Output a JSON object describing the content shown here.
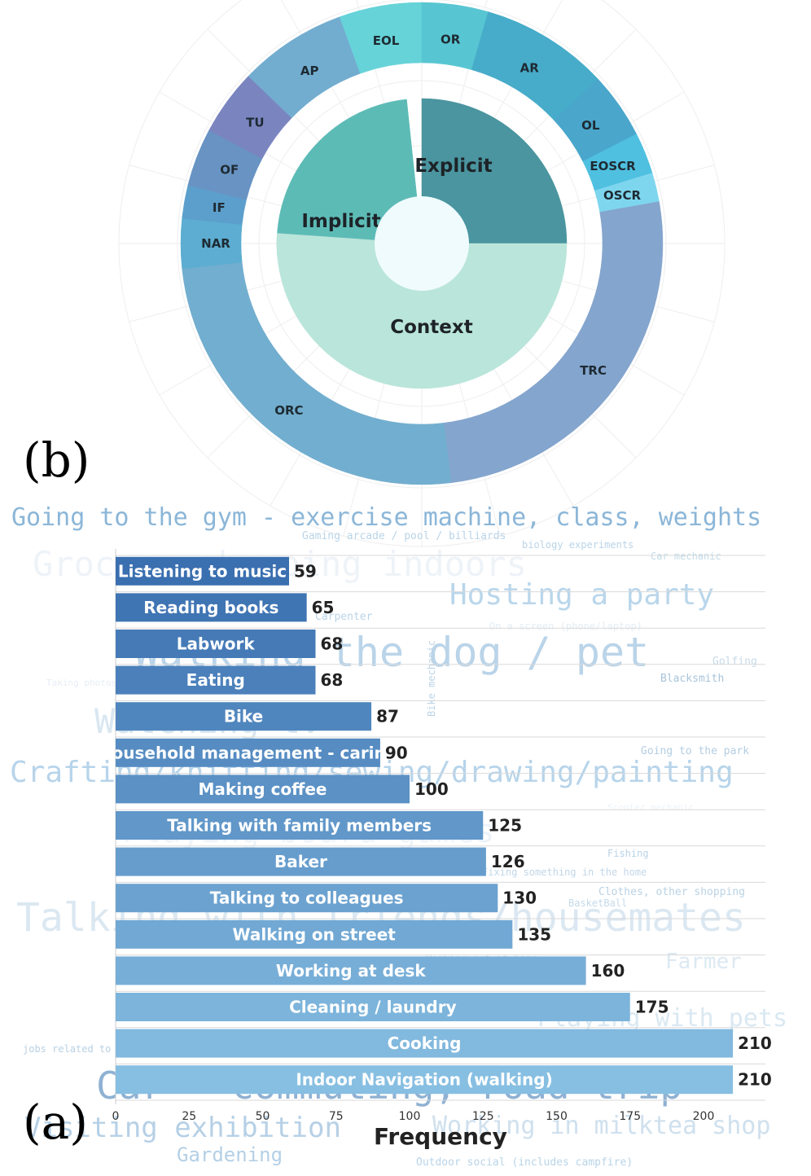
{
  "panel_b_label": "(b)",
  "panel_a_label": "(a)",
  "chart_data": [
    {
      "type": "pie",
      "panel": "(b)",
      "inner_ring": [
        {
          "label": "Explicit",
          "value": 90,
          "color": "#4a959f"
        },
        {
          "label": "Implicit",
          "value": 86,
          "color": "#5dbbb6"
        },
        {
          "label": "Context",
          "value": 184,
          "color": "#bae5da"
        }
      ],
      "outer_ring": [
        {
          "label": "EOL",
          "value": 20,
          "color": "#66d3d8"
        },
        {
          "label": "OR",
          "value": 16,
          "color": "#58c6d2"
        },
        {
          "label": "AR",
          "value": 31,
          "color": "#46acc9"
        },
        {
          "label": "OL",
          "value": 16,
          "color": "#4aa6cb"
        },
        {
          "label": "EOSCR",
          "value": 10,
          "color": "#4fc0e0"
        },
        {
          "label": "OSCR",
          "value": 7,
          "color": "#7ed6ee"
        },
        {
          "label": "TRC",
          "value": 93,
          "color": "#84a5cd"
        },
        {
          "label": "ORC",
          "value": 91,
          "color": "#72aecf"
        },
        {
          "label": "NAR",
          "value": 12,
          "color": "#5cadd1"
        },
        {
          "label": "IF",
          "value": 8,
          "color": "#5c9fcc"
        },
        {
          "label": "OF",
          "value": 14,
          "color": "#6893c3"
        },
        {
          "label": "TU",
          "value": 16,
          "color": "#7a85c0"
        },
        {
          "label": "AP",
          "value": 26,
          "color": "#72add0"
        }
      ]
    },
    {
      "type": "bar",
      "orientation": "horizontal",
      "panel": "(a)",
      "categories": [
        "Listening to music",
        "Reading books",
        "Labwork",
        "Eating",
        "Bike",
        "Household management - caring",
        "Making coffee",
        "Talking with family members",
        "Baker",
        "Talking to colleagues",
        "Walking on street",
        "Working at desk",
        "Cleaning / laundry",
        "Cooking",
        "Indoor Navigation (walking)"
      ],
      "values": [
        59,
        65,
        68,
        68,
        87,
        90,
        100,
        125,
        126,
        130,
        135,
        160,
        175,
        210,
        210
      ],
      "xlabel": "Frequency",
      "xlim": [
        0,
        220
      ],
      "xticks": [
        0,
        25,
        50,
        75,
        100,
        125,
        150,
        175,
        200
      ],
      "grid": true,
      "bar_color_top": "#3a6fb0",
      "bar_color_bottom": "#87bfe2"
    }
  ],
  "word_cloud": [
    {
      "text": "Going to the gym - exercise machine, class, weights",
      "size": "large"
    },
    {
      "text": "Gaming arcade / pool / billiards",
      "size": "small"
    },
    {
      "text": "biology experiments",
      "size": "small"
    },
    {
      "text": "Car mechanic",
      "size": "small"
    },
    {
      "text": "Grocery shopping indoors",
      "size": "large"
    },
    {
      "text": "Hosting a party",
      "size": "large"
    },
    {
      "text": "Carpenter",
      "size": "small"
    },
    {
      "text": "On a screen (phone/laptop)",
      "size": "small"
    },
    {
      "text": "Walking the dog / pet",
      "size": "large"
    },
    {
      "text": "Bike mechanic",
      "size": "small"
    },
    {
      "text": "Golfing",
      "size": "small"
    },
    {
      "text": "Blacksmith",
      "size": "small"
    },
    {
      "text": "Taking photos to document activities",
      "size": "small"
    },
    {
      "text": "Watching tv",
      "size": "large"
    },
    {
      "text": "Going to the park",
      "size": "small"
    },
    {
      "text": "Crafting/knitting/sewing/drawing/painting",
      "size": "large"
    },
    {
      "text": "Scooter mechanic",
      "size": "small"
    },
    {
      "text": "Playing board games",
      "size": "large"
    },
    {
      "text": "Fishing",
      "size": "small"
    },
    {
      "text": "Fixing something in the home",
      "size": "small"
    },
    {
      "text": "Clothes, other shopping",
      "size": "small"
    },
    {
      "text": "BasketBall",
      "size": "small"
    },
    {
      "text": "Talking with friends/housemates",
      "size": "large"
    },
    {
      "text": "Working out at home",
      "size": "small"
    },
    {
      "text": "Farmer",
      "size": "large"
    },
    {
      "text": "Playing with pets",
      "size": "large"
    },
    {
      "text": "jobs related to construction/renovation company (Director of work, tiler, plumber, Electrician, Handyman, etc)",
      "size": "small"
    },
    {
      "text": "Car - commuting, road trip",
      "size": "large"
    },
    {
      "text": "Visiting exhibition",
      "size": "large"
    },
    {
      "text": "Working in milktea shop",
      "size": "large"
    },
    {
      "text": "Gardening",
      "size": "large"
    },
    {
      "text": "Outdoor social (includes campfire)",
      "size": "small"
    }
  ]
}
